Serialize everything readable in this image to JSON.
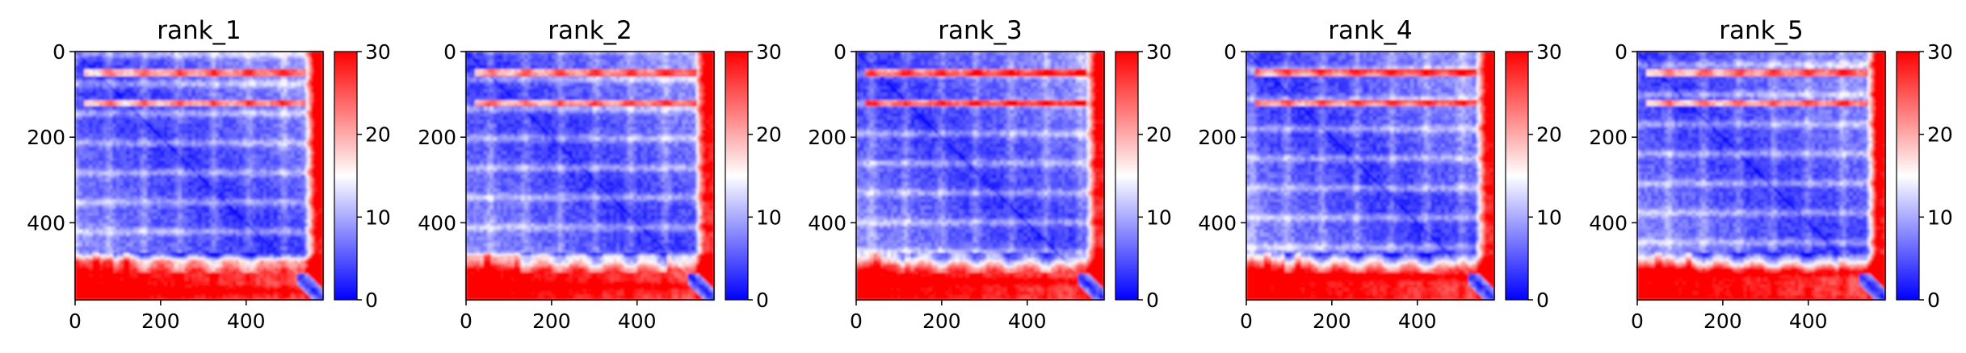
{
  "chart_data": [
    {
      "type": "heatmap",
      "title": "rank_1",
      "xlim": [
        0,
        580
      ],
      "ylim": [
        580,
        0
      ],
      "x_ticks": [
        "0",
        "200",
        "400"
      ],
      "y_ticks": [
        "0",
        "200",
        "400"
      ],
      "colorbar": {
        "range": [
          0,
          30
        ],
        "ticks": [
          "0",
          "10",
          "20",
          "30"
        ],
        "colormap": "bwr",
        "colors": [
          "#0000ff",
          "#ffffff",
          "#ff0000"
        ]
      },
      "structure": {
        "matrix_size": 580,
        "diagonal": "blue (0)",
        "high_block_start": 470,
        "high_stripe_rows": [
          50,
          120
        ],
        "far_right_block_start": 540
      }
    },
    {
      "type": "heatmap",
      "title": "rank_2",
      "xlim": [
        0,
        580
      ],
      "ylim": [
        580,
        0
      ],
      "x_ticks": [
        "0",
        "200",
        "400"
      ],
      "y_ticks": [
        "0",
        "200",
        "400"
      ],
      "colorbar": {
        "range": [
          0,
          30
        ],
        "ticks": [
          "0",
          "10",
          "20",
          "30"
        ],
        "colormap": "bwr",
        "colors": [
          "#0000ff",
          "#ffffff",
          "#ff0000"
        ]
      },
      "structure": {
        "matrix_size": 580,
        "diagonal": "blue (0)",
        "high_block_start": 470,
        "high_stripe_rows": [
          50,
          120
        ],
        "far_right_block_start": 540
      }
    },
    {
      "type": "heatmap",
      "title": "rank_3",
      "xlim": [
        0,
        580
      ],
      "ylim": [
        580,
        0
      ],
      "x_ticks": [
        "0",
        "200",
        "400"
      ],
      "y_ticks": [
        "0",
        "200",
        "400"
      ],
      "colorbar": {
        "range": [
          0,
          30
        ],
        "ticks": [
          "0",
          "10",
          "20",
          "30"
        ],
        "colormap": "bwr",
        "colors": [
          "#0000ff",
          "#ffffff",
          "#ff0000"
        ]
      },
      "structure": {
        "matrix_size": 580,
        "diagonal": "blue (0)",
        "high_block_start": 470,
        "high_stripe_rows": [
          50,
          120
        ],
        "far_right_block_start": 540
      }
    },
    {
      "type": "heatmap",
      "title": "rank_4",
      "xlim": [
        0,
        580
      ],
      "ylim": [
        580,
        0
      ],
      "x_ticks": [
        "0",
        "200",
        "400"
      ],
      "y_ticks": [
        "0",
        "200",
        "400"
      ],
      "colorbar": {
        "range": [
          0,
          30
        ],
        "ticks": [
          "0",
          "10",
          "20",
          "30"
        ],
        "colormap": "bwr",
        "colors": [
          "#0000ff",
          "#ffffff",
          "#ff0000"
        ]
      },
      "structure": {
        "matrix_size": 580,
        "diagonal": "blue (0)",
        "high_block_start": 470,
        "high_stripe_rows": [
          50,
          120
        ],
        "far_right_block_start": 540
      }
    },
    {
      "type": "heatmap",
      "title": "rank_5",
      "xlim": [
        0,
        580
      ],
      "ylim": [
        580,
        0
      ],
      "x_ticks": [
        "0",
        "200",
        "400"
      ],
      "y_ticks": [
        "0",
        "200",
        "400"
      ],
      "colorbar": {
        "range": [
          0,
          30
        ],
        "ticks": [
          "0",
          "10",
          "20",
          "30"
        ],
        "colormap": "bwr",
        "colors": [
          "#0000ff",
          "#ffffff",
          "#ff0000"
        ]
      },
      "structure": {
        "matrix_size": 580,
        "diagonal": "blue (0)",
        "high_block_start": 470,
        "high_stripe_rows": [
          50,
          120
        ],
        "far_right_block_start": 540
      }
    }
  ]
}
